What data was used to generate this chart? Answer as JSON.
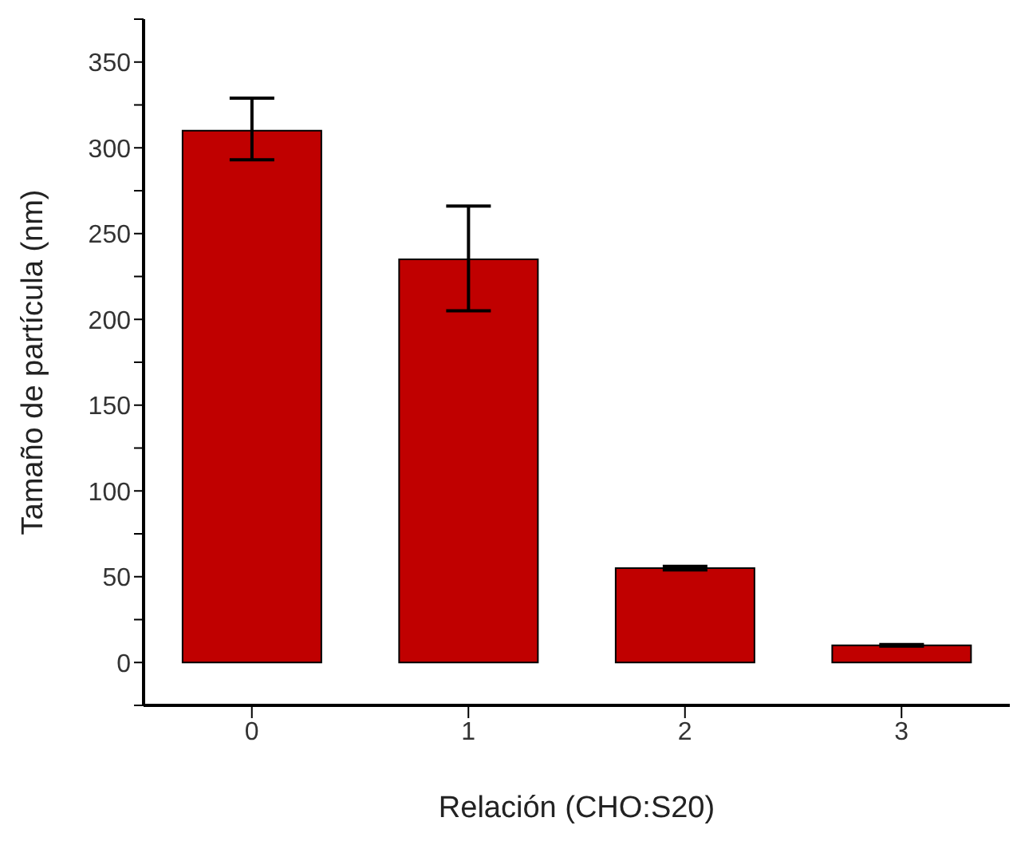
{
  "chart_data": {
    "type": "bar",
    "xlabel": "Relación (CHO:S20)",
    "ylabel": "Tamaño de partícula (nm)",
    "categories": [
      "0",
      "1",
      "2",
      "3"
    ],
    "values": [
      310,
      235,
      55,
      10
    ],
    "errors": [
      [
        293,
        329
      ],
      [
        205,
        266
      ],
      [
        54,
        56
      ],
      [
        9.5,
        10.5
      ]
    ],
    "color": "#c00000",
    "ylim": [
      -25,
      375
    ],
    "yticks": [
      {
        "value": -25,
        "label": null
      },
      0,
      {
        "value": 25,
        "label": null
      },
      50,
      {
        "value": 75,
        "label": null
      },
      100,
      {
        "value": 125,
        "label": null
      },
      150,
      {
        "value": 175,
        "label": null
      },
      200,
      {
        "value": 225,
        "label": null
      },
      250,
      {
        "value": 275,
        "label": null
      },
      300,
      {
        "value": 325,
        "label": null
      },
      350,
      {
        "value": 375,
        "label": null
      }
    ],
    "grid": false,
    "legend": false
  }
}
